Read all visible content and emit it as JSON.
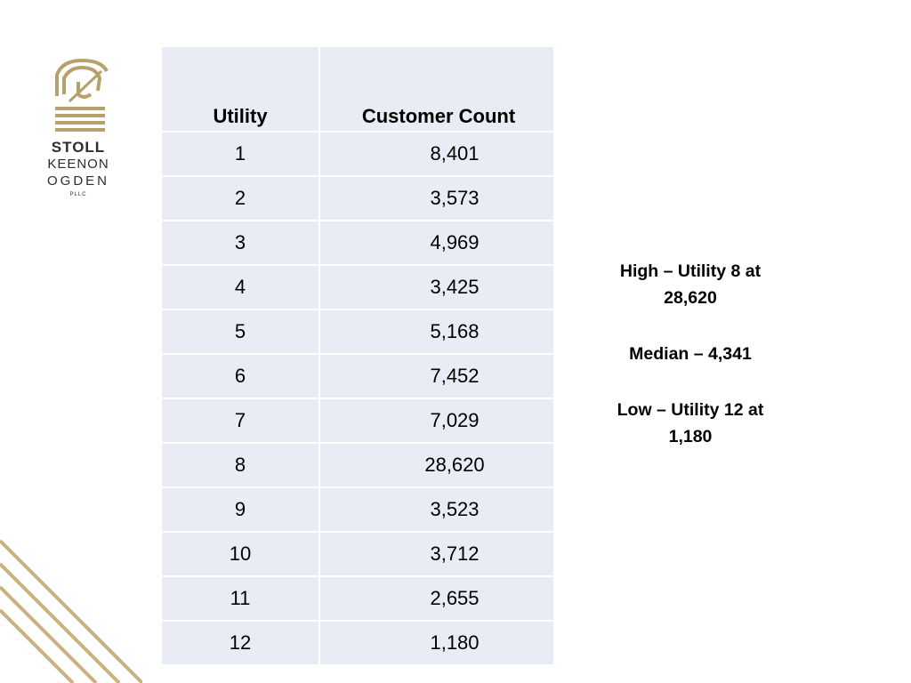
{
  "logo": {
    "line1": "STOLL",
    "line2": "KEENON",
    "line3": "OGDEN",
    "line4": "PLLC",
    "gold": "#b8a06a"
  },
  "table": {
    "headers": [
      "Utility",
      "Customer Count"
    ],
    "rows": [
      [
        "1",
        "8,401"
      ],
      [
        "2",
        "3,573"
      ],
      [
        "3",
        "4,969"
      ],
      [
        "4",
        "3,425"
      ],
      [
        "5",
        "5,168"
      ],
      [
        "6",
        "7,452"
      ],
      [
        "7",
        "7,029"
      ],
      [
        "8",
        "28,620"
      ],
      [
        "9",
        "3,523"
      ],
      [
        "10",
        "3,712"
      ],
      [
        "11",
        "2,655"
      ],
      [
        "12",
        "1,180"
      ]
    ],
    "background": "#e9ecf4"
  },
  "stats": {
    "high_line1": "High – Utility 8 at",
    "high_line2": "28,620",
    "median": "Median – 4,341",
    "low_line1": "Low – Utility 12 at",
    "low_line2": "1,180"
  }
}
